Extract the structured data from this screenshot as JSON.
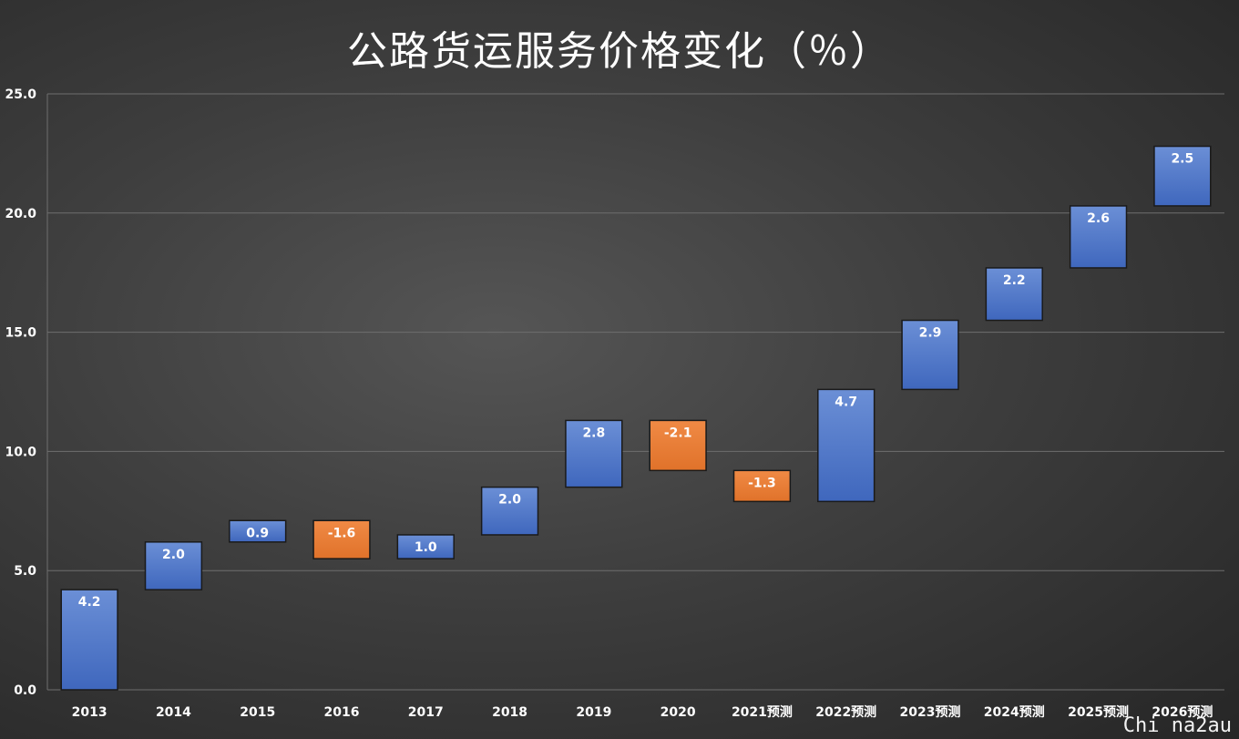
{
  "chart_data": {
    "type": "bar",
    "subtype": "waterfall",
    "title": "公路货运服务价格变化（％）",
    "categories": [
      "2013",
      "2014",
      "2015",
      "2016",
      "2017",
      "2018",
      "2019",
      "2020",
      "2021预测",
      "2022预测",
      "2023预测",
      "2024预测",
      "2025预测",
      "2026预测"
    ],
    "values": [
      4.2,
      2.0,
      0.9,
      -1.6,
      1.0,
      2.0,
      2.8,
      -2.1,
      -1.3,
      4.7,
      2.9,
      2.2,
      2.6,
      2.5
    ],
    "data_labels": [
      "4.2",
      "2.0",
      "0.9",
      "-1.6",
      "1.0",
      "2.0",
      "2.8",
      "-2.1",
      "-1.3",
      "4.7",
      "2.9",
      "2.2",
      "2.6",
      "2.5"
    ],
    "ylim": [
      0,
      25
    ],
    "yticks": [
      "0.0",
      "5.0",
      "10.0",
      "15.0",
      "20.0",
      "25.0"
    ],
    "grid": true,
    "colors": {
      "increase": "#4472c4",
      "decrease": "#ed7d31",
      "gridline": "#6e6e6e",
      "text": "#ffffff"
    }
  },
  "watermark": "Chi na2au"
}
